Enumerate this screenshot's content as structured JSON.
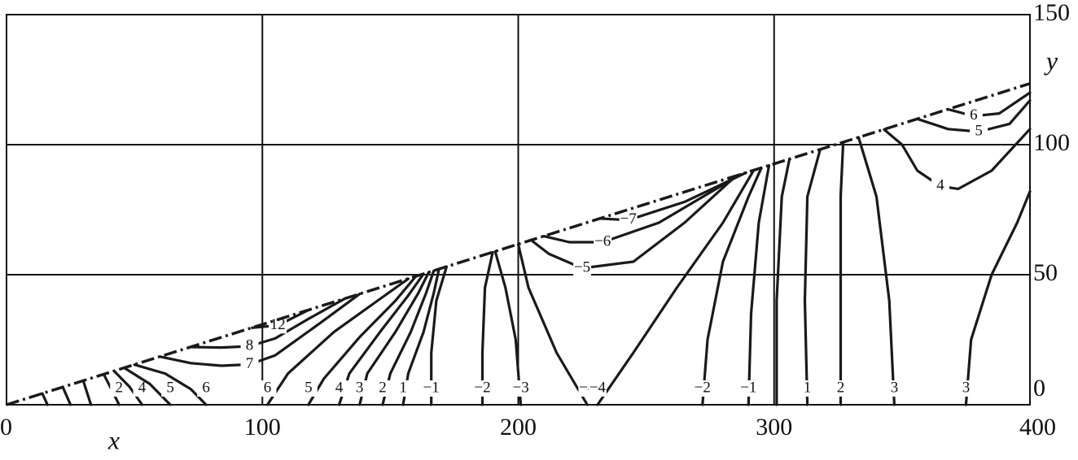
{
  "chart_data": {
    "type": "contour",
    "x_label": "x",
    "y_label": "y",
    "xlim": [
      0,
      400
    ],
    "ylim": [
      0,
      150
    ],
    "xticks": [
      0,
      100,
      200,
      300,
      400
    ],
    "yticks": [
      0,
      50,
      100,
      150
    ],
    "grid": true,
    "color": "#1a1a1a",
    "boundary": {
      "x": [
        0,
        400
      ],
      "y": [
        0,
        123.5
      ]
    },
    "contours": [
      {
        "x": [
          14,
          16
        ],
        "y": [
          4.3,
          0
        ]
      },
      {
        "x": [
          22,
          25
        ],
        "y": [
          6.8,
          0
        ]
      },
      {
        "x": [
          30,
          33
        ],
        "y": [
          9.2,
          0
        ]
      },
      {
        "label": "2",
        "x": [
          44,
          41,
          38
        ],
        "y": [
          0,
          6,
          11.7
        ]
      },
      {
        "label": "4",
        "x": [
          53,
          48,
          42
        ],
        "y": [
          0,
          7,
          13
        ]
      },
      {
        "label": "5",
        "x": [
          64,
          56,
          46
        ],
        "y": [
          0,
          8,
          14.2
        ]
      },
      {
        "label": "6",
        "x": [
          78,
          72,
          62,
          50
        ],
        "y": [
          0,
          6,
          12,
          15.4
        ]
      },
      {
        "label": "−7",
        "x": [],
        "y": []
      },
      {
        "label": "7",
        "x": [
          60,
          72,
          84,
          95,
          105,
          122,
          138
        ],
        "y": [
          18.5,
          16,
          15,
          15.5,
          19,
          31,
          42.6
        ]
      },
      {
        "label": "8",
        "x": [
          72,
          84,
          95,
          105,
          118,
          132
        ],
        "y": [
          22.2,
          22,
          22.5,
          25.5,
          33,
          40.7
        ]
      },
      {
        "label": "12",
        "x": [
          96,
          106,
          118
        ],
        "y": [
          29.6,
          30.5,
          36.4
        ]
      },
      {
        "label": "6",
        "x": [
          102,
          110,
          128,
          145,
          157
        ],
        "y": [
          0,
          12,
          28,
          40,
          48.4
        ]
      },
      {
        "label": "5",
        "x": [
          118,
          124,
          138,
          152,
          160
        ],
        "y": [
          0,
          10,
          26,
          40,
          49.4
        ]
      },
      {
        "label": "4",
        "x": [
          130,
          134,
          146,
          157,
          163
        ],
        "y": [
          0,
          12,
          28,
          42,
          50.3
        ]
      },
      {
        "label": "3",
        "x": [
          138,
          141,
          152,
          161,
          165
        ],
        "y": [
          0,
          12,
          28,
          43,
          50.9
        ]
      },
      {
        "label": "2",
        "x": [
          147,
          150,
          158,
          164,
          167
        ],
        "y": [
          0,
          12,
          28,
          43,
          51.5
        ]
      },
      {
        "label": "1",
        "x": [
          155,
          157,
          163,
          167,
          169
        ],
        "y": [
          0,
          12,
          28,
          43,
          52.1
        ]
      },
      {
        "label": "−1",
        "x": [
          166,
          166,
          168,
          172
        ],
        "y": [
          0,
          20,
          40,
          53.1
        ]
      },
      {
        "label": "−2",
        "x": [
          186,
          186,
          187,
          190
        ],
        "y": [
          0,
          20,
          45,
          58.6
        ]
      },
      {
        "label": "−3",
        "x": [
          201,
          199,
          195,
          191
        ],
        "y": [
          0,
          25,
          45,
          58.9
        ]
      },
      {
        "label": "−4",
        "x": [
          227,
          215,
          204,
          200
        ],
        "y": [
          0,
          20,
          45,
          61.7
        ]
      },
      {
        "label": "−4",
        "x": [
          231,
          245,
          262,
          280,
          292
        ],
        "y": [
          0,
          20,
          45,
          70,
          90.1
        ]
      },
      {
        "label": "−5",
        "x": [
          205,
          212,
          225,
          245,
          265,
          285
        ],
        "y": [
          63.3,
          58,
          52.5,
          55,
          70,
          87.9
        ]
      },
      {
        "label": "−6",
        "x": [
          210,
          220,
          233,
          255,
          287
        ],
        "y": [
          64.8,
          62.5,
          62.5,
          70,
          88.6
        ]
      },
      {
        "label": "−7",
        "x": [
          232,
          243,
          265,
          289
        ],
        "y": [
          71.6,
          71,
          78,
          89.2
        ]
      },
      {
        "label": "−2",
        "x": [
          272,
          274,
          280,
          290,
          295
        ],
        "y": [
          0,
          25,
          55,
          80,
          91
        ]
      },
      {
        "label": "−1",
        "x": [
          290,
          291,
          294,
          298
        ],
        "y": [
          0,
          35,
          70,
          92
        ]
      },
      {
        "x": [
          301,
          301,
          303,
          306
        ],
        "y": [
          0,
          40,
          80,
          94.4
        ]
      },
      {
        "label": "1",
        "x": [
          313,
          312,
          313,
          318
        ],
        "y": [
          0,
          40,
          80,
          98.1
        ]
      },
      {
        "label": "2",
        "x": [
          326,
          326,
          326,
          327
        ],
        "y": [
          0,
          40,
          80,
          100.9
        ]
      },
      {
        "label": "3",
        "x": [
          347,
          345,
          340,
          333
        ],
        "y": [
          0,
          40,
          80,
          102.8
        ]
      },
      {
        "label": "3",
        "x": [
          375,
          377,
          385,
          395,
          400
        ],
        "y": [
          0,
          25,
          50,
          70,
          82
        ]
      },
      {
        "label": "4",
        "x": [
          343,
          350,
          356,
          365,
          372,
          385,
          400
        ],
        "y": [
          105.8,
          100,
          90,
          84,
          83,
          90,
          106
        ]
      },
      {
        "label": "5",
        "x": [
          356,
          368,
          380,
          392,
          400
        ],
        "y": [
          109.9,
          106,
          105,
          108,
          117
        ]
      },
      {
        "label": "6",
        "x": [
          368,
          378,
          388,
          400
        ],
        "y": [
          113.6,
          111,
          112,
          120
        ]
      }
    ]
  }
}
